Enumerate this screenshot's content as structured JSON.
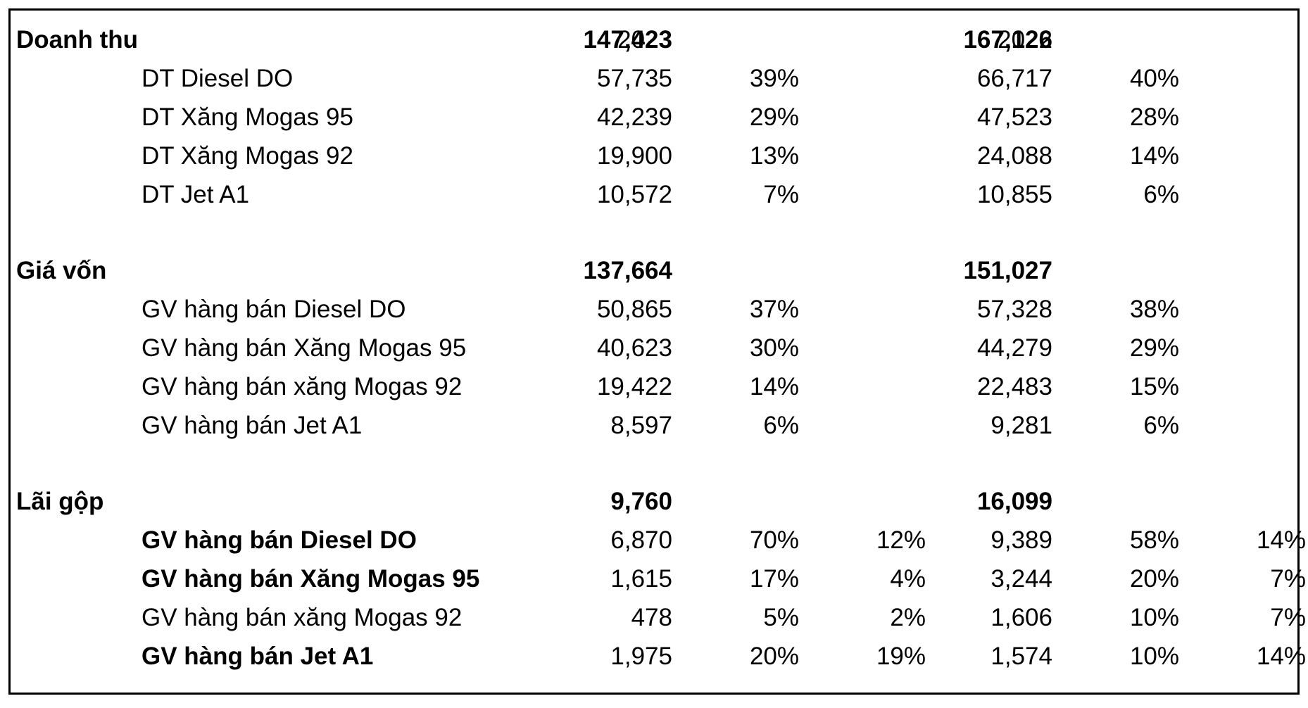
{
  "header": {
    "year_2023": "2023",
    "year_2022": "2022"
  },
  "rows": [
    {
      "label": "Doanh thu",
      "bold": true,
      "indent": false,
      "v2023": "147,423",
      "p2023": "",
      "m2023": "",
      "v2022": "167,126",
      "p2022": "",
      "m2022": ""
    },
    {
      "label": "DT Diesel DO",
      "bold": false,
      "indent": true,
      "v2023": "57,735",
      "p2023": "39%",
      "m2023": "",
      "v2022": "66,717",
      "p2022": "40%",
      "m2022": ""
    },
    {
      "label": "DT Xăng Mogas 95",
      "bold": false,
      "indent": true,
      "v2023": "42,239",
      "p2023": "29%",
      "m2023": "",
      "v2022": "47,523",
      "p2022": "28%",
      "m2022": ""
    },
    {
      "label": "DT Xăng Mogas 92",
      "bold": false,
      "indent": true,
      "v2023": "19,900",
      "p2023": "13%",
      "m2023": "",
      "v2022": "24,088",
      "p2022": "14%",
      "m2022": ""
    },
    {
      "label": "DT Jet A1",
      "bold": false,
      "indent": true,
      "v2023": "10,572",
      "p2023": "7%",
      "m2023": "",
      "v2022": "10,855",
      "p2022": "6%",
      "m2022": ""
    },
    {
      "label": "Giá vốn",
      "bold": true,
      "indent": false,
      "v2023": "137,664",
      "p2023": "",
      "m2023": "",
      "v2022": "151,027",
      "p2022": "",
      "m2022": ""
    },
    {
      "label": "GV hàng bán Diesel DO",
      "bold": false,
      "indent": true,
      "v2023": "50,865",
      "p2023": "37%",
      "m2023": "",
      "v2022": "57,328",
      "p2022": "38%",
      "m2022": ""
    },
    {
      "label": "GV hàng bán Xăng Mogas 95",
      "bold": false,
      "indent": true,
      "v2023": "40,623",
      "p2023": "30%",
      "m2023": "",
      "v2022": "44,279",
      "p2022": "29%",
      "m2022": ""
    },
    {
      "label": "GV hàng bán xăng Mogas 92",
      "bold": false,
      "indent": true,
      "v2023": "19,422",
      "p2023": "14%",
      "m2023": "",
      "v2022": "22,483",
      "p2022": "15%",
      "m2022": ""
    },
    {
      "label": "GV hàng bán Jet A1",
      "bold": false,
      "indent": true,
      "v2023": "8,597",
      "p2023": "6%",
      "m2023": "",
      "v2022": "9,281",
      "p2022": "6%",
      "m2022": ""
    },
    {
      "label": "Lãi gộp",
      "bold": true,
      "indent": false,
      "v2023": "9,760",
      "p2023": "",
      "m2023": "",
      "v2022": "16,099",
      "p2022": "",
      "m2022": ""
    },
    {
      "label": "GV hàng bán Diesel DO",
      "bold": true,
      "indent": true,
      "v2023": "6,870",
      "p2023": "70%",
      "m2023": "12%",
      "v2022": "9,389",
      "p2022": "58%",
      "m2022": "14%"
    },
    {
      "label": "GV hàng bán Xăng Mogas 95",
      "bold": true,
      "indent": true,
      "v2023": "1,615",
      "p2023": "17%",
      "m2023": "4%",
      "v2022": "3,244",
      "p2022": "20%",
      "m2022": "7%"
    },
    {
      "label": "GV hàng bán xăng Mogas 92",
      "bold": false,
      "indent": true,
      "v2023": "478",
      "p2023": "5%",
      "m2023": "2%",
      "v2022": "1,606",
      "p2022": "10%",
      "m2022": "7%"
    },
    {
      "label": "GV hàng bán Jet A1",
      "bold": true,
      "indent": true,
      "v2023": "1,975",
      "p2023": "20%",
      "m2023": "19%",
      "v2022": "1,574",
      "p2022": "10%",
      "m2022": "14%"
    }
  ]
}
